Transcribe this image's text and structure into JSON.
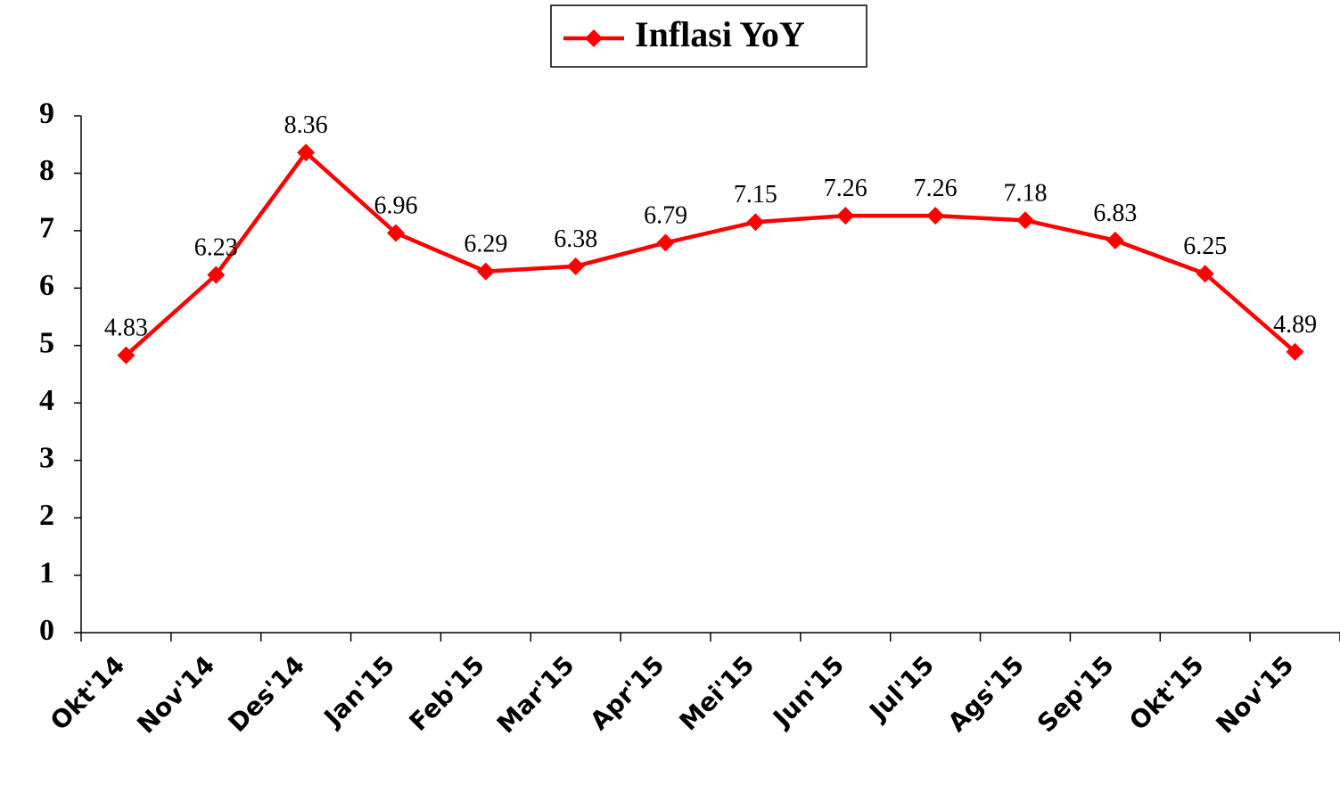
{
  "chart_data": {
    "type": "line",
    "categories": [
      "Okt'14",
      "Nov'14",
      "Des'14",
      "Jan'15",
      "Feb'15",
      "Mar'15",
      "Apr'15",
      "Mei'15",
      "Jun'15",
      "Jul'15",
      "Ags'15",
      "Sep'15",
      "Okt'15",
      "Nov'15"
    ],
    "series": [
      {
        "name": "Inflasi YoY",
        "color": "#ff0000",
        "values": [
          4.83,
          6.23,
          8.36,
          6.96,
          6.29,
          6.38,
          6.79,
          7.15,
          7.26,
          7.26,
          7.18,
          6.83,
          6.25,
          4.89
        ]
      }
    ],
    "ylim": [
      0,
      9
    ],
    "yticks": [
      0,
      1,
      2,
      3,
      4,
      5,
      6,
      7,
      8,
      9
    ],
    "grid": false,
    "legend": "top"
  }
}
